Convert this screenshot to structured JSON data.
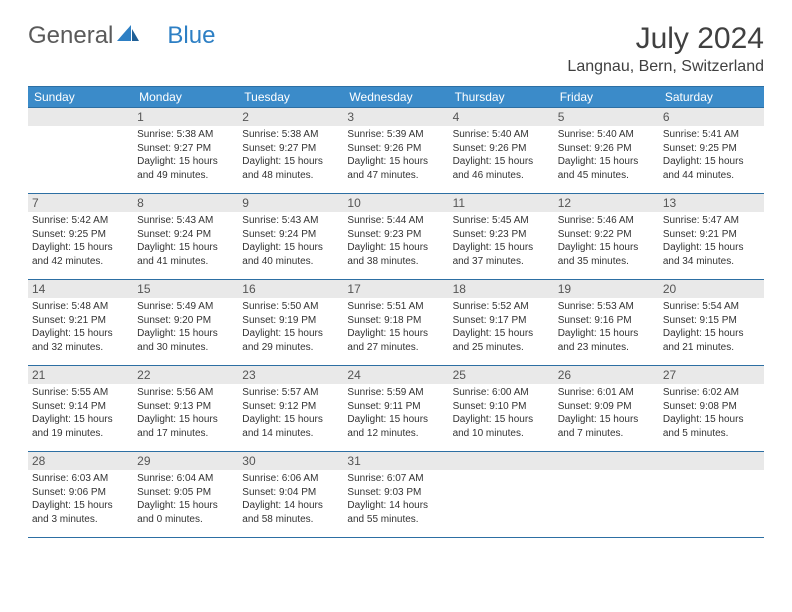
{
  "brand": {
    "part1": "General",
    "part2": "Blue"
  },
  "title": {
    "month_year": "July 2024",
    "location": "Langnau, Bern, Switzerland"
  },
  "colors": {
    "header_bg": "#3b8bc9",
    "header_text": "#ffffff",
    "border": "#2d6fa3",
    "daynum_bg": "#e9e9e9",
    "brand_blue": "#2d7fc4",
    "text": "#333333"
  },
  "weekdays": [
    "Sunday",
    "Monday",
    "Tuesday",
    "Wednesday",
    "Thursday",
    "Friday",
    "Saturday"
  ],
  "weeks": [
    [
      {
        "n": "",
        "sunrise": "",
        "sunset": "",
        "daylight": ""
      },
      {
        "n": "1",
        "sunrise": "Sunrise: 5:38 AM",
        "sunset": "Sunset: 9:27 PM",
        "daylight": "Daylight: 15 hours and 49 minutes."
      },
      {
        "n": "2",
        "sunrise": "Sunrise: 5:38 AM",
        "sunset": "Sunset: 9:27 PM",
        "daylight": "Daylight: 15 hours and 48 minutes."
      },
      {
        "n": "3",
        "sunrise": "Sunrise: 5:39 AM",
        "sunset": "Sunset: 9:26 PM",
        "daylight": "Daylight: 15 hours and 47 minutes."
      },
      {
        "n": "4",
        "sunrise": "Sunrise: 5:40 AM",
        "sunset": "Sunset: 9:26 PM",
        "daylight": "Daylight: 15 hours and 46 minutes."
      },
      {
        "n": "5",
        "sunrise": "Sunrise: 5:40 AM",
        "sunset": "Sunset: 9:26 PM",
        "daylight": "Daylight: 15 hours and 45 minutes."
      },
      {
        "n": "6",
        "sunrise": "Sunrise: 5:41 AM",
        "sunset": "Sunset: 9:25 PM",
        "daylight": "Daylight: 15 hours and 44 minutes."
      }
    ],
    [
      {
        "n": "7",
        "sunrise": "Sunrise: 5:42 AM",
        "sunset": "Sunset: 9:25 PM",
        "daylight": "Daylight: 15 hours and 42 minutes."
      },
      {
        "n": "8",
        "sunrise": "Sunrise: 5:43 AM",
        "sunset": "Sunset: 9:24 PM",
        "daylight": "Daylight: 15 hours and 41 minutes."
      },
      {
        "n": "9",
        "sunrise": "Sunrise: 5:43 AM",
        "sunset": "Sunset: 9:24 PM",
        "daylight": "Daylight: 15 hours and 40 minutes."
      },
      {
        "n": "10",
        "sunrise": "Sunrise: 5:44 AM",
        "sunset": "Sunset: 9:23 PM",
        "daylight": "Daylight: 15 hours and 38 minutes."
      },
      {
        "n": "11",
        "sunrise": "Sunrise: 5:45 AM",
        "sunset": "Sunset: 9:23 PM",
        "daylight": "Daylight: 15 hours and 37 minutes."
      },
      {
        "n": "12",
        "sunrise": "Sunrise: 5:46 AM",
        "sunset": "Sunset: 9:22 PM",
        "daylight": "Daylight: 15 hours and 35 minutes."
      },
      {
        "n": "13",
        "sunrise": "Sunrise: 5:47 AM",
        "sunset": "Sunset: 9:21 PM",
        "daylight": "Daylight: 15 hours and 34 minutes."
      }
    ],
    [
      {
        "n": "14",
        "sunrise": "Sunrise: 5:48 AM",
        "sunset": "Sunset: 9:21 PM",
        "daylight": "Daylight: 15 hours and 32 minutes."
      },
      {
        "n": "15",
        "sunrise": "Sunrise: 5:49 AM",
        "sunset": "Sunset: 9:20 PM",
        "daylight": "Daylight: 15 hours and 30 minutes."
      },
      {
        "n": "16",
        "sunrise": "Sunrise: 5:50 AM",
        "sunset": "Sunset: 9:19 PM",
        "daylight": "Daylight: 15 hours and 29 minutes."
      },
      {
        "n": "17",
        "sunrise": "Sunrise: 5:51 AM",
        "sunset": "Sunset: 9:18 PM",
        "daylight": "Daylight: 15 hours and 27 minutes."
      },
      {
        "n": "18",
        "sunrise": "Sunrise: 5:52 AM",
        "sunset": "Sunset: 9:17 PM",
        "daylight": "Daylight: 15 hours and 25 minutes."
      },
      {
        "n": "19",
        "sunrise": "Sunrise: 5:53 AM",
        "sunset": "Sunset: 9:16 PM",
        "daylight": "Daylight: 15 hours and 23 minutes."
      },
      {
        "n": "20",
        "sunrise": "Sunrise: 5:54 AM",
        "sunset": "Sunset: 9:15 PM",
        "daylight": "Daylight: 15 hours and 21 minutes."
      }
    ],
    [
      {
        "n": "21",
        "sunrise": "Sunrise: 5:55 AM",
        "sunset": "Sunset: 9:14 PM",
        "daylight": "Daylight: 15 hours and 19 minutes."
      },
      {
        "n": "22",
        "sunrise": "Sunrise: 5:56 AM",
        "sunset": "Sunset: 9:13 PM",
        "daylight": "Daylight: 15 hours and 17 minutes."
      },
      {
        "n": "23",
        "sunrise": "Sunrise: 5:57 AM",
        "sunset": "Sunset: 9:12 PM",
        "daylight": "Daylight: 15 hours and 14 minutes."
      },
      {
        "n": "24",
        "sunrise": "Sunrise: 5:59 AM",
        "sunset": "Sunset: 9:11 PM",
        "daylight": "Daylight: 15 hours and 12 minutes."
      },
      {
        "n": "25",
        "sunrise": "Sunrise: 6:00 AM",
        "sunset": "Sunset: 9:10 PM",
        "daylight": "Daylight: 15 hours and 10 minutes."
      },
      {
        "n": "26",
        "sunrise": "Sunrise: 6:01 AM",
        "sunset": "Sunset: 9:09 PM",
        "daylight": "Daylight: 15 hours and 7 minutes."
      },
      {
        "n": "27",
        "sunrise": "Sunrise: 6:02 AM",
        "sunset": "Sunset: 9:08 PM",
        "daylight": "Daylight: 15 hours and 5 minutes."
      }
    ],
    [
      {
        "n": "28",
        "sunrise": "Sunrise: 6:03 AM",
        "sunset": "Sunset: 9:06 PM",
        "daylight": "Daylight: 15 hours and 3 minutes."
      },
      {
        "n": "29",
        "sunrise": "Sunrise: 6:04 AM",
        "sunset": "Sunset: 9:05 PM",
        "daylight": "Daylight: 15 hours and 0 minutes."
      },
      {
        "n": "30",
        "sunrise": "Sunrise: 6:06 AM",
        "sunset": "Sunset: 9:04 PM",
        "daylight": "Daylight: 14 hours and 58 minutes."
      },
      {
        "n": "31",
        "sunrise": "Sunrise: 6:07 AM",
        "sunset": "Sunset: 9:03 PM",
        "daylight": "Daylight: 14 hours and 55 minutes."
      },
      {
        "n": "",
        "sunrise": "",
        "sunset": "",
        "daylight": ""
      },
      {
        "n": "",
        "sunrise": "",
        "sunset": "",
        "daylight": ""
      },
      {
        "n": "",
        "sunrise": "",
        "sunset": "",
        "daylight": ""
      }
    ]
  ]
}
